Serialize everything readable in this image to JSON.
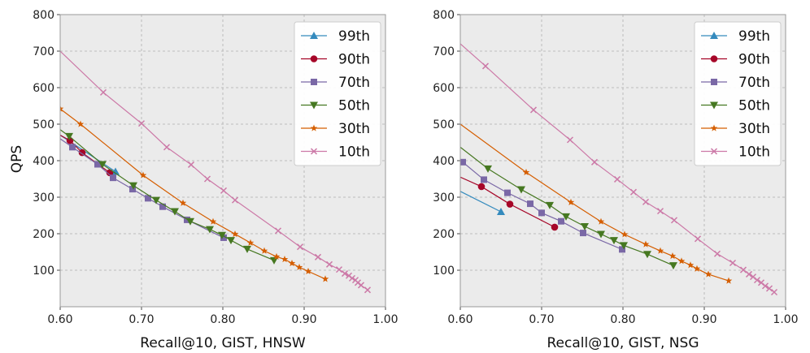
{
  "figure": {
    "ylabel": "QPS"
  },
  "chart_data": [
    {
      "type": "line",
      "title": "",
      "xlabel": "Recall@10, GIST, HNSW",
      "ylabel": "QPS",
      "xlim": [
        0.6,
        1.0
      ],
      "ylim": [
        0,
        800
      ],
      "xticks": [
        "0.60",
        "0.70",
        "0.80",
        "0.90",
        "1.00"
      ],
      "yticks": [
        "100",
        "200",
        "300",
        "400",
        "500",
        "600",
        "700",
        "800"
      ],
      "legend": "top-right",
      "grid": true,
      "series": [
        {
          "name": "99th",
          "color": "#348ABD",
          "marker": "triangle-up",
          "x": [
            0.6,
            0.668
          ],
          "y": [
            470,
            370
          ],
          "mx": [
            0.668
          ],
          "my": [
            370
          ]
        },
        {
          "name": "90th",
          "color": "#A60628",
          "marker": "circle",
          "x": [
            0.6,
            0.612,
            0.627,
            0.661
          ],
          "y": [
            470,
            455,
            422,
            367
          ],
          "mx": [
            0.612,
            0.627,
            0.661
          ],
          "my": [
            455,
            422,
            367
          ]
        },
        {
          "name": "70th",
          "color": "#7A68A6",
          "marker": "square",
          "x": [
            0.6,
            0.615,
            0.646,
            0.665,
            0.689,
            0.708,
            0.726,
            0.756,
            0.801
          ],
          "y": [
            460,
            437,
            390,
            353,
            322,
            297,
            274,
            238,
            189
          ],
          "mx": [
            0.615,
            0.646,
            0.665,
            0.689,
            0.708,
            0.726,
            0.756,
            0.801
          ],
          "my": [
            437,
            390,
            353,
            322,
            297,
            274,
            238,
            189
          ]
        },
        {
          "name": "50th",
          "color": "#467821",
          "marker": "triangle-down",
          "x": [
            0.6,
            0.611,
            0.652,
            0.69,
            0.718,
            0.741,
            0.76,
            0.784,
            0.799,
            0.81,
            0.83,
            0.863
          ],
          "y": [
            485,
            467,
            390,
            332,
            292,
            261,
            234,
            212,
            196,
            182,
            158,
            127
          ],
          "mx": [
            0.611,
            0.652,
            0.69,
            0.718,
            0.741,
            0.76,
            0.784,
            0.799,
            0.81,
            0.83,
            0.863
          ],
          "my": [
            467,
            390,
            332,
            292,
            261,
            234,
            212,
            196,
            182,
            158,
            127
          ]
        },
        {
          "name": "30th",
          "color": "#D55E00",
          "marker": "star",
          "x": [
            0.6,
            0.625,
            0.702,
            0.751,
            0.788,
            0.815,
            0.834,
            0.851,
            0.866,
            0.876,
            0.885,
            0.894,
            0.905,
            0.926
          ],
          "y": [
            542,
            500,
            360,
            284,
            233,
            199,
            175,
            153,
            137,
            130,
            119,
            108,
            97,
            76
          ],
          "mx": [
            0.6,
            0.625,
            0.702,
            0.751,
            0.788,
            0.815,
            0.834,
            0.851,
            0.866,
            0.876,
            0.885,
            0.894,
            0.905,
            0.926
          ],
          "my": [
            542,
            500,
            360,
            284,
            233,
            199,
            175,
            153,
            137,
            130,
            119,
            108,
            97,
            76
          ]
        },
        {
          "name": "10th",
          "color": "#CC79A7",
          "marker": "x",
          "x": [
            0.6,
            0.653,
            0.7,
            0.731,
            0.761,
            0.781,
            0.801,
            0.815,
            0.868,
            0.895,
            0.917,
            0.931,
            0.943,
            0.95,
            0.955,
            0.959,
            0.963,
            0.966,
            0.97,
            0.978
          ],
          "y": [
            700,
            587,
            502,
            437,
            389,
            350,
            318,
            292,
            208,
            164,
            136,
            116,
            102,
            91,
            85,
            78,
            73,
            66,
            59,
            46
          ],
          "mx": [
            0.653,
            0.7,
            0.731,
            0.761,
            0.781,
            0.801,
            0.815,
            0.868,
            0.895,
            0.917,
            0.931,
            0.943,
            0.95,
            0.955,
            0.959,
            0.963,
            0.966,
            0.97,
            0.978
          ],
          "my": [
            587,
            502,
            437,
            389,
            350,
            318,
            292,
            208,
            164,
            136,
            116,
            102,
            91,
            85,
            78,
            73,
            66,
            59,
            46
          ]
        }
      ]
    },
    {
      "type": "line",
      "title": "",
      "xlabel": "Recall@10, GIST, NSG",
      "ylabel": "",
      "xlim": [
        0.6,
        1.0
      ],
      "ylim": [
        0,
        800
      ],
      "xticks": [
        "0.60",
        "0.70",
        "0.80",
        "0.90",
        "1.00"
      ],
      "yticks": [
        "100",
        "200",
        "300",
        "400",
        "500",
        "600",
        "700",
        "800"
      ],
      "legend": "top-right",
      "grid": true,
      "series": [
        {
          "name": "99th",
          "color": "#348ABD",
          "marker": "triangle-up",
          "x": [
            0.6,
            0.65
          ],
          "y": [
            316,
            260
          ],
          "mx": [
            0.65
          ],
          "my": [
            260
          ]
        },
        {
          "name": "90th",
          "color": "#A60628",
          "marker": "circle",
          "x": [
            0.6,
            0.626,
            0.661,
            0.716
          ],
          "y": [
            355,
            329,
            281,
            218
          ],
          "mx": [
            0.626,
            0.661,
            0.716
          ],
          "my": [
            329,
            281,
            218
          ]
        },
        {
          "name": "70th",
          "color": "#7A68A6",
          "marker": "square",
          "x": [
            0.6,
            0.603,
            0.629,
            0.658,
            0.686,
            0.7,
            0.724,
            0.751,
            0.799
          ],
          "y": [
            400,
            396,
            348,
            312,
            282,
            257,
            234,
            202,
            157
          ],
          "mx": [
            0.603,
            0.629,
            0.658,
            0.686,
            0.7,
            0.724,
            0.751,
            0.799
          ],
          "my": [
            396,
            348,
            312,
            282,
            257,
            234,
            202,
            157
          ]
        },
        {
          "name": "50th",
          "color": "#467821",
          "marker": "triangle-down",
          "x": [
            0.6,
            0.634,
            0.675,
            0.71,
            0.73,
            0.753,
            0.773,
            0.789,
            0.801,
            0.83,
            0.862
          ],
          "y": [
            437,
            378,
            321,
            278,
            247,
            220,
            199,
            182,
            168,
            144,
            113
          ],
          "mx": [
            0.634,
            0.675,
            0.71,
            0.73,
            0.753,
            0.773,
            0.789,
            0.801,
            0.83,
            0.862
          ],
          "my": [
            378,
            321,
            278,
            247,
            220,
            199,
            182,
            168,
            144,
            113
          ]
        },
        {
          "name": "30th",
          "color": "#D55E00",
          "marker": "star",
          "x": [
            0.6,
            0.681,
            0.736,
            0.773,
            0.802,
            0.828,
            0.846,
            0.861,
            0.872,
            0.883,
            0.891,
            0.905,
            0.93
          ],
          "y": [
            500,
            368,
            286,
            233,
            198,
            171,
            153,
            139,
            125,
            114,
            104,
            89,
            71
          ],
          "mx": [
            0.681,
            0.736,
            0.773,
            0.802,
            0.828,
            0.846,
            0.861,
            0.872,
            0.883,
            0.891,
            0.905,
            0.93
          ],
          "my": [
            368,
            286,
            233,
            198,
            171,
            153,
            139,
            125,
            114,
            104,
            89,
            71
          ]
        },
        {
          "name": "10th",
          "color": "#CC79A7",
          "marker": "x",
          "x": [
            0.6,
            0.631,
            0.69,
            0.735,
            0.765,
            0.793,
            0.813,
            0.828,
            0.846,
            0.863,
            0.892,
            0.916,
            0.935,
            0.948,
            0.955,
            0.96,
            0.965,
            0.97,
            0.975,
            0.98,
            0.986
          ],
          "y": [
            720,
            659,
            539,
            457,
            396,
            349,
            314,
            287,
            262,
            237,
            186,
            145,
            120,
            101,
            89,
            82,
            73,
            66,
            57,
            50,
            40
          ],
          "mx": [
            0.631,
            0.69,
            0.735,
            0.765,
            0.793,
            0.813,
            0.828,
            0.846,
            0.863,
            0.892,
            0.916,
            0.935,
            0.948,
            0.955,
            0.96,
            0.965,
            0.97,
            0.975,
            0.98,
            0.986
          ],
          "my": [
            659,
            539,
            457,
            396,
            349,
            314,
            287,
            262,
            237,
            186,
            145,
            120,
            101,
            89,
            82,
            73,
            66,
            57,
            50,
            40
          ]
        }
      ]
    }
  ]
}
